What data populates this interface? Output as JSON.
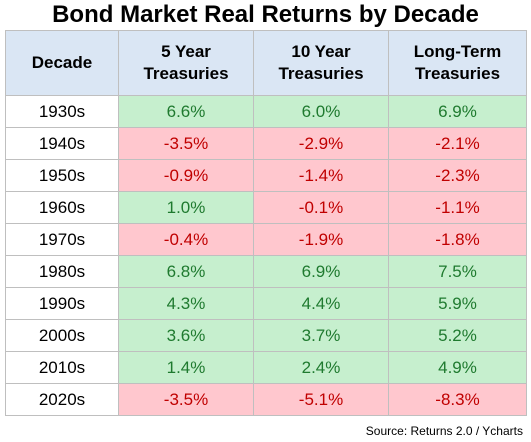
{
  "chart_data": {
    "type": "table",
    "title": "Bond Market Real Returns by Decade",
    "columns": [
      "Decade",
      "5 Year Treasuries",
      "10 Year Treasuries",
      "Long-Term Treasuries"
    ],
    "rows": [
      {
        "decade": "1930s",
        "values": [
          "6.6%",
          "6.0%",
          "6.9%"
        ]
      },
      {
        "decade": "1940s",
        "values": [
          "-3.5%",
          "-2.9%",
          "-2.1%"
        ]
      },
      {
        "decade": "1950s",
        "values": [
          "-0.9%",
          "-1.4%",
          "-2.3%"
        ]
      },
      {
        "decade": "1960s",
        "values": [
          "1.0%",
          "-0.1%",
          "-1.1%"
        ]
      },
      {
        "decade": "1970s",
        "values": [
          "-0.4%",
          "-1.9%",
          "-1.8%"
        ]
      },
      {
        "decade": "1980s",
        "values": [
          "6.8%",
          "6.9%",
          "7.5%"
        ]
      },
      {
        "decade": "1990s",
        "values": [
          "4.3%",
          "4.4%",
          "5.9%"
        ]
      },
      {
        "decade": "2000s",
        "values": [
          "3.6%",
          "3.7%",
          "5.2%"
        ]
      },
      {
        "decade": "2010s",
        "values": [
          "1.4%",
          "2.4%",
          "4.9%"
        ]
      },
      {
        "decade": "2020s",
        "values": [
          "-3.5%",
          "-5.1%",
          "-8.3%"
        ]
      }
    ],
    "source": "Source: Returns 2.0 / Ycharts",
    "colors": {
      "header_bg": "#dae6f4",
      "positive_bg": "#c6efce",
      "positive_text": "#1f7a2f",
      "negative_bg": "#ffc7ce",
      "negative_text": "#c00000"
    }
  }
}
